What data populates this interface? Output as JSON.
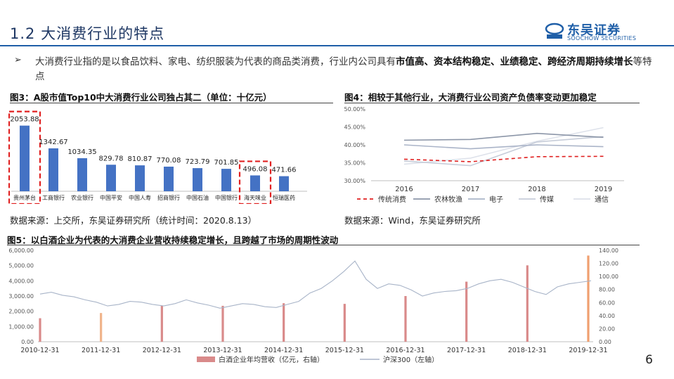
{
  "page": {
    "title": "1.2 大消费行业的特点",
    "logo_cn": "东吴证券",
    "logo_en": "SOOCHOW SECURITIES",
    "page_number": "6"
  },
  "intro": {
    "bullet": "➢",
    "text_normal": "大消费行业指的是以食品饮料、家电、纺织服装为代表的商品类消费，行业内公司具有",
    "text_bold": "市值高、资本结构稳定、业绩稳定、跨经济周期持续增长",
    "text_tail": "等特点"
  },
  "fig3": {
    "title": "图3：A股市值Top10中大消费行业公司独占其二（单位：十亿元）",
    "source": "数据来源：上交所，东吴证券研究所（统计时间：2020.8.13）",
    "chart_data": {
      "type": "bar",
      "categories": [
        "贵州茅台",
        "工商银行",
        "农业银行",
        "中国平安",
        "中国人寿",
        "招商银行",
        "中国石油",
        "中国银行",
        "海天味业",
        "恒瑞医药"
      ],
      "values": [
        2053.88,
        1342.67,
        1034.35,
        829.78,
        810.87,
        770.08,
        723.79,
        701.85,
        496.08,
        471.66
      ],
      "value_labels": [
        "2053.88",
        "1342.67",
        "1034.35",
        "829.78",
        "810.87",
        "770.08",
        "723.79",
        "701.85",
        "496.08",
        "471.66"
      ],
      "highlighted": [
        "贵州茅台",
        "海天味业"
      ],
      "bar_color": "#4472c4",
      "highlight_color": "#e02020"
    }
  },
  "fig4": {
    "title": "图4：相较于其他行业，大消费行业公司资产负债率变动更加稳定",
    "source": "数据来源：Wind，东吴证券研究所",
    "chart_data": {
      "type": "line",
      "x": [
        "2016",
        "2017",
        "2018",
        "2019"
      ],
      "ylim": [
        30,
        50
      ],
      "yticks": [
        "50.00%",
        "45.00%",
        "40.00%",
        "35.00%",
        "30.00%"
      ],
      "series": [
        {
          "name": "传统消费",
          "values": [
            36.0,
            35.3,
            36.7,
            36.8
          ],
          "color": "#e02020",
          "dash": "5,4"
        },
        {
          "name": "农林牧渔",
          "values": [
            41.3,
            41.5,
            43.2,
            42.1
          ],
          "color": "#8c96a8",
          "dash": ""
        },
        {
          "name": "电子",
          "values": [
            40.0,
            38.9,
            40.0,
            39.5
          ],
          "color": "#aab4c8",
          "dash": ""
        },
        {
          "name": "传媒",
          "values": [
            35.5,
            34.2,
            40.8,
            42.3
          ],
          "color": "#c7cdd9",
          "dash": ""
        },
        {
          "name": "通信",
          "values": [
            34.6,
            36.3,
            41.0,
            44.8
          ],
          "color": "#dde1ea",
          "dash": ""
        }
      ]
    }
  },
  "fig5": {
    "title": "图5：以白酒企业为代表的大消费企业营收持续稳定增长，且跨越了市场的周期性波动",
    "chart_data": {
      "type": "bar+line",
      "x_labels": [
        "2010-12-31",
        "2011-12-31",
        "2012-12-31",
        "2013-12-31",
        "2014-12-31",
        "2015-12-31",
        "2016-12-31",
        "2017-12-31",
        "2018-12-31",
        "2019-12-31"
      ],
      "left_axis": {
        "ticks": [
          "6,000.00",
          "5,000.00",
          "4,000.00",
          "3,000.00",
          "2,000.00",
          "1,000.00",
          "0.00"
        ],
        "ylim": [
          0,
          6000
        ]
      },
      "right_axis": {
        "ticks": [
          "140.00",
          "120.00",
          "100.00",
          "80.00",
          "60.00",
          "40.00",
          "20.00",
          "0.00"
        ],
        "ylim": [
          0,
          140
        ]
      },
      "bars": {
        "name": "白酒企业年均营收（亿元，右轴）",
        "color": "#d98a8a",
        "values": [
          36,
          44,
          55,
          55,
          59,
          58,
          70,
          92,
          117,
          132
        ],
        "colors": [
          "#d98a8a",
          "#f0b48a",
          "#d98a8a",
          "#d98a8a",
          "#d98a8a",
          "#d98a8a",
          "#d98a8a",
          "#d98a8a",
          "#d98a8a",
          "#f0a070"
        ]
      },
      "line": {
        "name": "沪深300（左轴）",
        "color": "#a8b4c8",
        "values": [
          3128,
          3250,
          3050,
          2950,
          2750,
          2600,
          2350,
          2450,
          2650,
          2600,
          2450,
          2350,
          2500,
          2750,
          2550,
          2400,
          2200,
          2350,
          2500,
          2450,
          2300,
          2250,
          2450,
          2650,
          3200,
          3500,
          4000,
          4600,
          5300,
          4100,
          3500,
          3800,
          3700,
          3400,
          3000,
          3200,
          3300,
          3350,
          3500,
          3800,
          4000,
          4100,
          3900,
          3600,
          3300,
          3100,
          3600,
          3800,
          3900,
          4000
        ]
      }
    }
  },
  "legend4_dummy": ""
}
